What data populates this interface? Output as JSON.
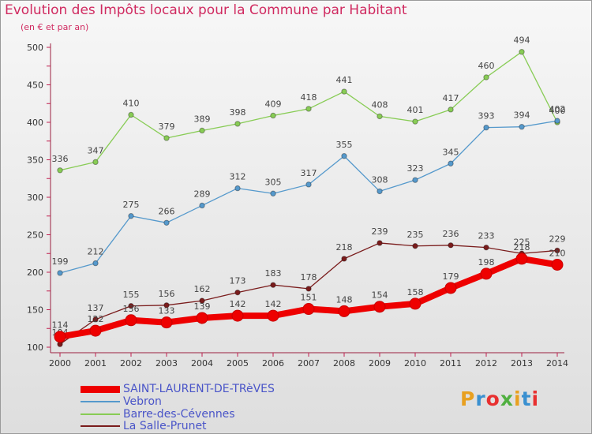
{
  "title": "Evolution des Impôts locaux pour la Commune par Habitant",
  "subtitle": "(en € et par an)",
  "logo": {
    "text": "Proxiti",
    "colors": [
      "#e8a020",
      "#3a90d0",
      "#e83030",
      "#50b040",
      "#e8a020",
      "#3a90d0",
      "#e83030"
    ]
  },
  "chart_data": {
    "type": "line",
    "x": [
      "2000",
      "2001",
      "2002",
      "2003",
      "2004",
      "2005",
      "2006",
      "2007",
      "2008",
      "2009",
      "2010",
      "2011",
      "2012",
      "2013",
      "2014"
    ],
    "ylim": [
      100,
      500
    ],
    "yticks": [
      "100",
      "150",
      "200",
      "250",
      "300",
      "350",
      "400",
      "450",
      "500"
    ],
    "grid": false,
    "legend_position": "bottom-left",
    "series": [
      {
        "name": "La Salle-Prunet",
        "color": "#7a1c1c",
        "values": [
          104,
          137,
          155,
          156,
          162,
          173,
          183,
          178,
          218,
          239,
          235,
          236,
          233,
          225,
          229
        ],
        "labels": [
          "104",
          "137",
          "155",
          "156",
          "162",
          "173",
          "183",
          "178",
          "218",
          "239",
          "235",
          "236",
          "233",
          "225",
          "229"
        ]
      },
      {
        "name": "Barre-des-Cévennes",
        "color": "#88cc55",
        "values": [
          336,
          347,
          410,
          379,
          389,
          398,
          409,
          418,
          441,
          408,
          401,
          417,
          460,
          494,
          400
        ],
        "labels": [
          "336",
          "347",
          "410",
          "379",
          "389",
          "398",
          "409",
          "418",
          "441",
          "408",
          "401",
          "417",
          "460",
          "494",
          "400"
        ]
      },
      {
        "name": "Vebron",
        "color": "#5599cc",
        "values": [
          199,
          212,
          275,
          266,
          289,
          312,
          305,
          317,
          355,
          308,
          323,
          345,
          393,
          394,
          402
        ],
        "labels": [
          "199",
          "212",
          "275",
          "266",
          "289",
          "312",
          "305",
          "317",
          "355",
          "308",
          "323",
          "345",
          "393",
          "394",
          "402"
        ]
      },
      {
        "name": "SAINT-LAURENT-DE-TRèVES",
        "color": "#ee0000",
        "values": [
          114,
          122,
          136,
          133,
          139,
          142,
          142,
          151,
          148,
          154,
          158,
          179,
          198,
          218,
          210
        ],
        "labels": [
          "114",
          "122",
          "136",
          "133",
          "139",
          "142",
          "142",
          "151",
          "148",
          "154",
          "158",
          "179",
          "198",
          "218",
          "210"
        ]
      }
    ]
  },
  "legend": [
    {
      "label": "SAINT-LAURENT-DE-TRèVES",
      "color": "#ee0000",
      "thick": true
    },
    {
      "label": "Vebron",
      "color": "#5599cc",
      "thick": false
    },
    {
      "label": "Barre-des-Cévennes",
      "color": "#88cc55",
      "thick": false
    },
    {
      "label": "La Salle-Prunet",
      "color": "#7a1c1c",
      "thick": false
    }
  ]
}
